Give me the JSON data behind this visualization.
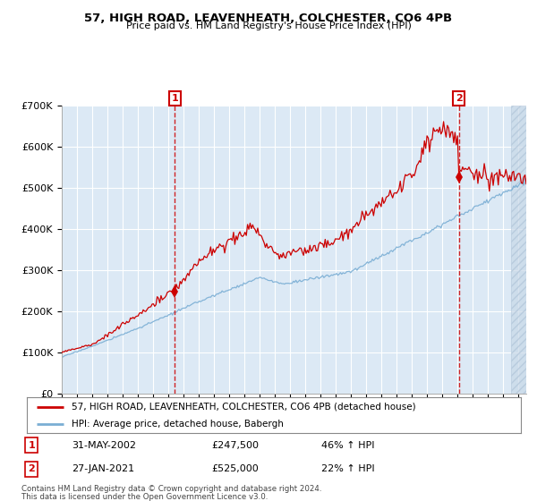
{
  "title1": "57, HIGH ROAD, LEAVENHEATH, COLCHESTER, CO6 4PB",
  "title2": "Price paid vs. HM Land Registry's House Price Index (HPI)",
  "bg_color": "#dce9f5",
  "red_color": "#cc0000",
  "blue_color": "#7aaed4",
  "ylim": [
    0,
    700000
  ],
  "yticks": [
    0,
    100000,
    200000,
    300000,
    400000,
    500000,
    600000,
    700000
  ],
  "ytick_labels": [
    "£0",
    "£100K",
    "£200K",
    "£300K",
    "£400K",
    "£500K",
    "£600K",
    "£700K"
  ],
  "legend_label_red": "57, HIGH ROAD, LEAVENHEATH, COLCHESTER, CO6 4PB (detached house)",
  "legend_label_blue": "HPI: Average price, detached house, Babergh",
  "sale1_date": "31-MAY-2002",
  "sale1_price": 247500,
  "sale1_label": "1",
  "sale1_pct": "46% ↑ HPI",
  "sale2_date": "27-JAN-2021",
  "sale2_price": 525000,
  "sale2_label": "2",
  "sale2_pct": "22% ↑ HPI",
  "footer1": "Contains HM Land Registry data © Crown copyright and database right 2024.",
  "footer2": "This data is licensed under the Open Government Licence v3.0.",
  "sale1_x": 2002.42,
  "sale2_x": 2021.07,
  "xmin": 1995.0,
  "xmax": 2025.5
}
